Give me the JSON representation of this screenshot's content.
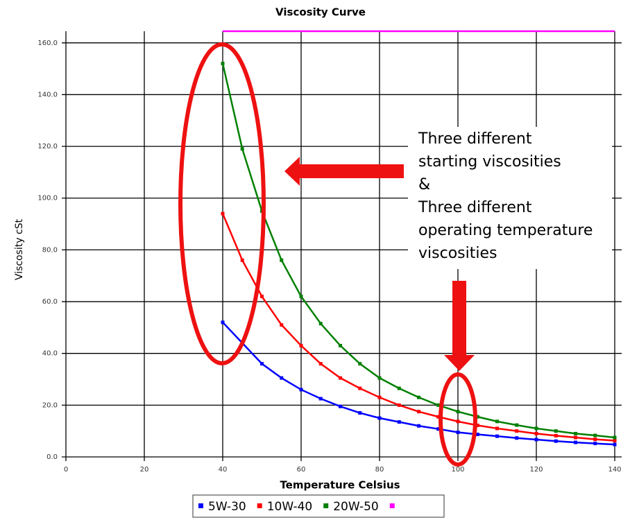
{
  "chart_data": {
    "type": "line",
    "title": "Viscosity Curve",
    "x_label": "Temperature Celsius",
    "y_label": "Viscosity cSt",
    "x": [
      40,
      45,
      50,
      55,
      60,
      65,
      70,
      75,
      80,
      85,
      90,
      95,
      100,
      105,
      110,
      115,
      120,
      125,
      130,
      135,
      140
    ],
    "series": [
      {
        "name": "5W-30",
        "color": "#0000ff",
        "values": [
          52,
          44,
          36,
          30.5,
          26,
          22.5,
          19.5,
          17,
          15,
          13.5,
          12,
          10.8,
          9.5,
          8.7,
          8,
          7.3,
          6.7,
          6.1,
          5.6,
          5.2,
          4.8
        ]
      },
      {
        "name": "10W-40",
        "color": "#ff0000",
        "values": [
          94,
          76,
          62,
          51,
          43,
          36,
          30.5,
          26.5,
          23,
          20,
          17.5,
          15.5,
          13.7,
          12.2,
          11,
          10,
          9,
          8.2,
          7.5,
          6.8,
          6.3
        ]
      },
      {
        "name": "20W-50",
        "color": "#008000",
        "values": [
          152,
          119,
          95,
          76,
          62,
          51.5,
          43,
          36,
          30.5,
          26.5,
          23,
          20,
          17.5,
          15.5,
          13.7,
          12.3,
          11,
          10,
          9,
          8.3,
          7.5
        ]
      },
      {
        "color": "#ff00ff",
        "values": [
          164.5,
          164.5,
          164.5,
          164.5,
          164.5,
          164.5,
          164.5,
          164.5,
          164.5,
          164.5,
          164.5,
          164.5,
          164.5,
          164.5,
          164.5,
          164.5,
          164.5,
          164.5,
          164.5,
          164.5,
          164.5
        ]
      }
    ],
    "xlim": [
      0,
      140
    ],
    "xticks": [
      0,
      20,
      40,
      60,
      80,
      100,
      120,
      140
    ],
    "ylim": [
      0,
      164.5
    ],
    "yticks": [
      {
        "value": 0,
        "label": "0.0"
      },
      {
        "value": 20,
        "label": "20.0"
      },
      {
        "value": 40,
        "label": "40.0"
      },
      {
        "value": 60,
        "label": "60.0"
      },
      {
        "value": 80,
        "label": "80.0"
      },
      {
        "value": 100,
        "label": "100.0"
      },
      {
        "value": 120,
        "label": "120.0"
      },
      {
        "value": 140,
        "label": "140.0"
      },
      {
        "value": 160,
        "label": "160.0"
      }
    ],
    "grid": true,
    "annotation": [
      "Three different",
      "starting viscosities",
      "&",
      "Three different",
      "operating temperature",
      "viscosities"
    ]
  }
}
